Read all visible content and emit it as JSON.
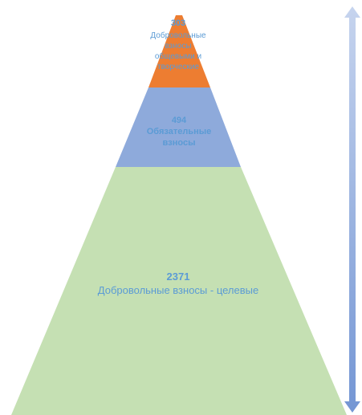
{
  "pyramid": {
    "levels": [
      {
        "value": "303",
        "lines": [
          "Добровольные",
          "взносы",
          "общевыми и",
          "творческие"
        ],
        "fill": "#ed7d31"
      },
      {
        "value": "494",
        "lines": [
          "Обязательные",
          "взносы"
        ],
        "fill": "#8eaadb"
      },
      {
        "value": "2371",
        "lines": [
          "Добровольные взносы - целевые"
        ],
        "fill": "#c5e0b3"
      }
    ],
    "label_color": "#5b9bd5"
  },
  "arrow": {
    "color_top": "#c6d4ee",
    "color_bottom": "#7496d4",
    "direction": "both"
  }
}
